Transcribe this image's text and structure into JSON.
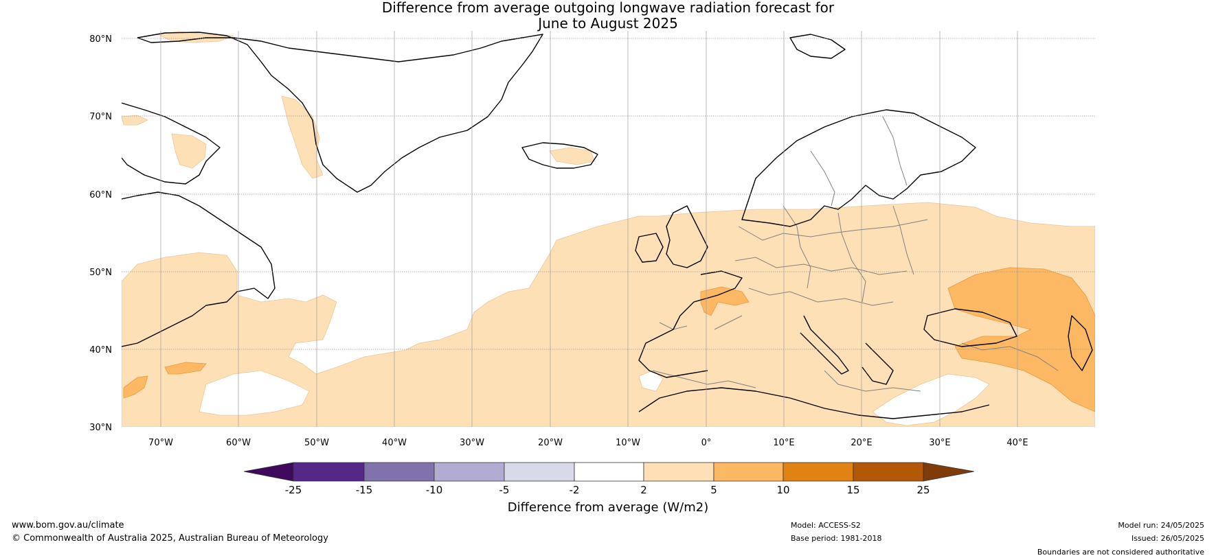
{
  "title_line1": "Difference from average outgoing longwave radiation forecast for",
  "title_line2": "June to August 2025",
  "map": {
    "lat_labels": [
      "80°N",
      "70°N",
      "60°N",
      "50°N",
      "40°N",
      "30°N"
    ],
    "lon_labels": [
      "70°W",
      "60°W",
      "50°W",
      "40°W",
      "30°W",
      "20°W",
      "10°W",
      "0°",
      "10°E",
      "20°E",
      "30°E",
      "40°E"
    ],
    "extent": {
      "lon_min": -75,
      "lon_max": 50,
      "lat_min": 30,
      "lat_max": 81
    }
  },
  "colorbar": {
    "label": "Difference from average (W/m2)",
    "ticks": [
      "-25",
      "-15",
      "-10",
      "-5",
      "-2",
      "2",
      "5",
      "10",
      "15",
      "25"
    ],
    "colors": {
      "below_min": "#3f0a5e",
      "bins": [
        "#542788",
        "#8073ac",
        "#b2abd2",
        "#d8daeb",
        "#ffffff",
        "#fee0b6",
        "#fdb863",
        "#e08214",
        "#b35806"
      ],
      "above_max": "#7f3b08"
    }
  },
  "footer": {
    "website": "www.bom.gov.au/climate",
    "copyright": "© Commonwealth of Australia 2025, Australian Bureau of Meteorology",
    "model": "Model: ACCESS-S2",
    "base_period": "Base period: 1981-2018",
    "model_run": "Model run: 24/05/2025",
    "issued": "Issued: 26/05/2025",
    "disclaimer": "Boundaries are not considered authoritative"
  }
}
